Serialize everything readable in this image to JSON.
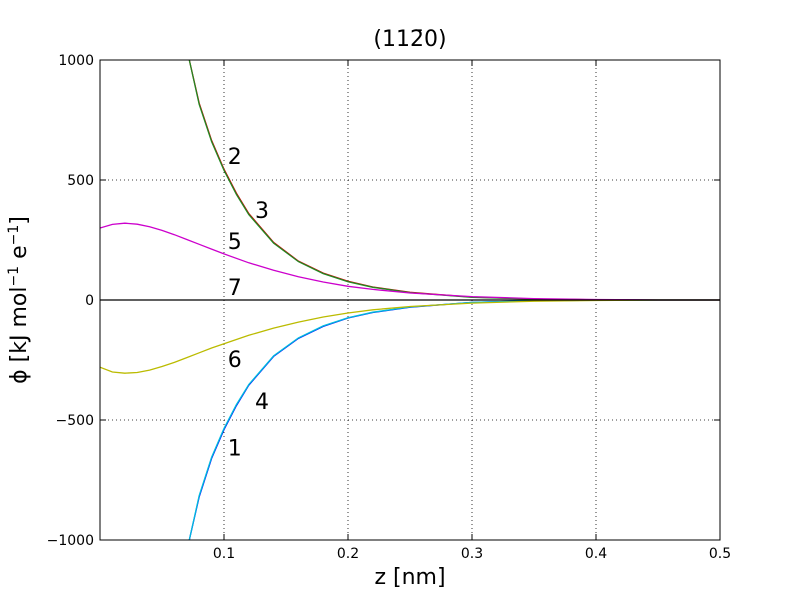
{
  "chart_data": {
    "type": "line",
    "title": "(11̄2̄0)",
    "title_display": "(112̄0)",
    "xlabel": "z [nm]",
    "ylabel": "ϕ [kJ mol⁻¹  e⁻¹]",
    "xlim": [
      0,
      0.5
    ],
    "ylim": [
      -1000,
      1000
    ],
    "x_ticks": [
      0.1,
      0.2,
      0.3,
      0.4,
      0.5
    ],
    "x_tick_labels": [
      "0.1",
      "0.2",
      "0.3",
      "0.4",
      "0.5"
    ],
    "y_ticks": [
      -1000,
      -500,
      0,
      500,
      1000
    ],
    "y_tick_labels": [
      "−1000",
      "−500",
      "0",
      "500",
      "1000"
    ],
    "grid": true,
    "grid_style": "dotted",
    "series": [
      {
        "name": "1",
        "color": "#0000ff",
        "x": [
          0.072,
          0.08,
          0.09,
          0.1,
          0.11,
          0.12,
          0.14,
          0.16,
          0.18,
          0.2,
          0.22,
          0.25,
          0.3,
          0.35,
          0.4,
          0.45,
          0.5
        ],
        "y": [
          -1000,
          -820,
          -660,
          -540,
          -440,
          -355,
          -235,
          -160,
          -110,
          -75,
          -52,
          -30,
          -10,
          -3,
          -1,
          0,
          0
        ]
      },
      {
        "name": "2",
        "color": "#cc0000",
        "x": [
          0.072,
          0.08,
          0.09,
          0.1,
          0.11,
          0.12,
          0.14,
          0.16,
          0.18,
          0.2,
          0.22,
          0.25,
          0.3,
          0.35,
          0.4,
          0.45,
          0.5
        ],
        "y": [
          1000,
          820,
          665,
          545,
          445,
          360,
          240,
          162,
          112,
          78,
          54,
          32,
          12,
          4,
          1,
          0,
          0
        ]
      },
      {
        "name": "3",
        "color": "#228822",
        "x": [
          0.072,
          0.08,
          0.09,
          0.1,
          0.11,
          0.12,
          0.14,
          0.16,
          0.18,
          0.2,
          0.22,
          0.25,
          0.3,
          0.35,
          0.4,
          0.45,
          0.5
        ],
        "y": [
          1000,
          815,
          660,
          540,
          440,
          356,
          237,
          160,
          110,
          76,
          53,
          31,
          11,
          4,
          1,
          0,
          0
        ]
      },
      {
        "name": "4",
        "color": "#00bbdd",
        "x": [
          0.072,
          0.08,
          0.09,
          0.1,
          0.11,
          0.12,
          0.14,
          0.16,
          0.18,
          0.2,
          0.22,
          0.25,
          0.3,
          0.35,
          0.4,
          0.45,
          0.5
        ],
        "y": [
          -1000,
          -815,
          -655,
          -535,
          -436,
          -352,
          -233,
          -158,
          -108,
          -74,
          -51,
          -29,
          -10,
          -3,
          -1,
          0,
          0
        ]
      },
      {
        "name": "5",
        "color": "#cc00cc",
        "x": [
          0.0,
          0.01,
          0.02,
          0.03,
          0.04,
          0.05,
          0.06,
          0.07,
          0.08,
          0.09,
          0.1,
          0.12,
          0.14,
          0.16,
          0.18,
          0.2,
          0.22,
          0.25,
          0.3,
          0.35,
          0.4,
          0.45,
          0.5
        ],
        "y": [
          300,
          315,
          320,
          316,
          305,
          290,
          272,
          252,
          232,
          212,
          192,
          155,
          124,
          97,
          75,
          57,
          44,
          29,
          14,
          6,
          2,
          0,
          0
        ]
      },
      {
        "name": "6",
        "color": "#bbbb00",
        "x": [
          0.0,
          0.01,
          0.02,
          0.03,
          0.04,
          0.05,
          0.06,
          0.07,
          0.08,
          0.09,
          0.1,
          0.12,
          0.14,
          0.16,
          0.18,
          0.2,
          0.22,
          0.25,
          0.3,
          0.35,
          0.4,
          0.45,
          0.5
        ],
        "y": [
          -280,
          -300,
          -305,
          -302,
          -292,
          -277,
          -260,
          -240,
          -220,
          -200,
          -182,
          -147,
          -117,
          -92,
          -71,
          -54,
          -41,
          -27,
          -13,
          -5,
          -2,
          0,
          0
        ]
      },
      {
        "name": "7",
        "color": "#000000",
        "x": [
          0.0,
          0.5
        ],
        "y": [
          0,
          0
        ]
      }
    ],
    "curve_labels": [
      {
        "text": "2",
        "x": 0.103,
        "y": 600
      },
      {
        "text": "3",
        "x": 0.125,
        "y": 375
      },
      {
        "text": "5",
        "x": 0.103,
        "y": 245
      },
      {
        "text": "7",
        "x": 0.103,
        "y": 55
      },
      {
        "text": "6",
        "x": 0.103,
        "y": -245
      },
      {
        "text": "4",
        "x": 0.125,
        "y": -420
      },
      {
        "text": "1",
        "x": 0.103,
        "y": -615
      }
    ]
  }
}
